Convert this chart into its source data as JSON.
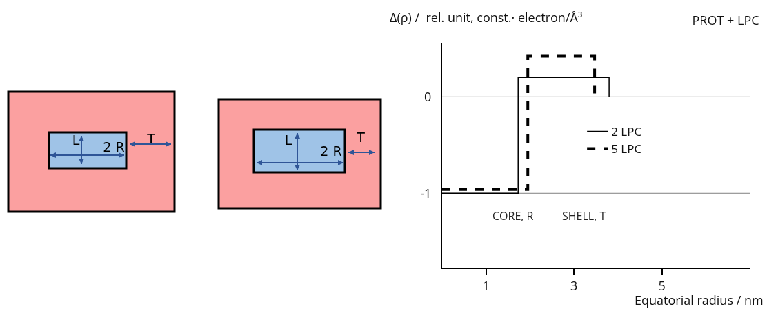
{
  "chart_data": {
    "type": "line",
    "title": "PROT + LPC",
    "ylabel": "Δ(ρ) /  rel. unit, const.· electron/Å³",
    "xlabel": "Equatorial radius / nm",
    "annotations": [
      "CORE, R",
      "SHELL, T",
      "L",
      "2 R",
      "T",
      "L",
      "2 R",
      "T"
    ],
    "series": [
      {
        "name": "2 LPC",
        "color": "#000000",
        "line_style": "solid",
        "x": [
          0,
          1.73,
          1.73,
          3.8,
          3.8
        ],
        "values": [
          -1,
          -1,
          0.2,
          0.2,
          0
        ]
      },
      {
        "name": "5 LPC",
        "color": "#000000",
        "line_style": "dashed",
        "x": [
          0,
          1.95,
          1.95,
          3.47,
          3.47
        ],
        "values": [
          -0.96,
          -0.96,
          0.42,
          0.42,
          0
        ]
      }
    ],
    "ref_lines": [
      {
        "axis": "y",
        "value": 0,
        "color": "#808080"
      },
      {
        "axis": "y",
        "value": -1,
        "color": "#808080"
      }
    ],
    "xlim": [
      0,
      7
    ],
    "xticks": [
      1,
      3,
      5
    ],
    "ylim": [
      -1.77,
      0.56
    ],
    "yticks": [
      -1,
      0
    ],
    "grid": false,
    "legend": "right",
    "marker": "none"
  }
}
